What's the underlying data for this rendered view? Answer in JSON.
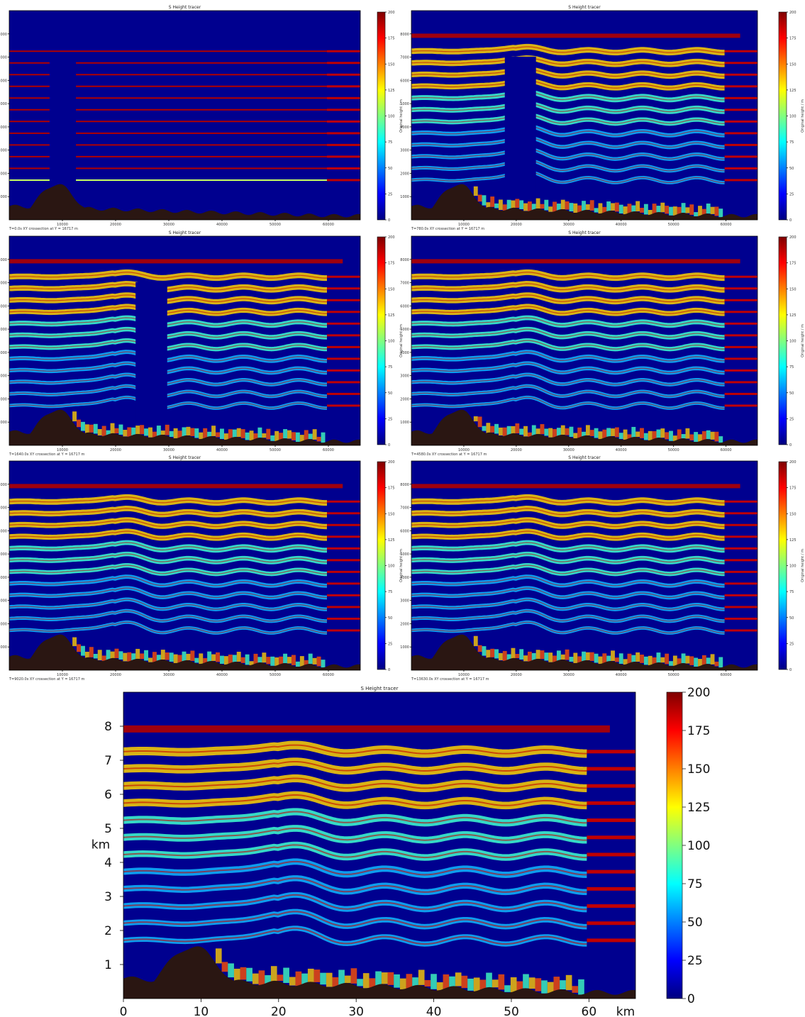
{
  "colors": {
    "background": "#00008f",
    "terrain": "#2a1612",
    "colormap": [
      "#00007f",
      "#0000ff",
      "#0080ff",
      "#00ffff",
      "#80ff80",
      "#ffff00",
      "#ff8000",
      "#ff0000",
      "#7f0000"
    ]
  },
  "chart_data": [
    {
      "type": "heatmap",
      "title": "S Height tracer",
      "caption": "T=0.0s XY crossection at Y = 16717 m",
      "colorbar_label": "Original height / m",
      "colorbar_ticks": [
        "0",
        "25",
        "50",
        "75",
        "100",
        "125",
        "150",
        "175",
        "200"
      ],
      "ylim": [
        0,
        9000
      ],
      "xlim": [
        0,
        66000
      ],
      "x_ticks": [
        "10000",
        "20000",
        "30000",
        "40000",
        "50000",
        "60000"
      ],
      "y_ticks": [
        "1000",
        "2000",
        "3000",
        "4000",
        "5000",
        "6000",
        "7000",
        "8000"
      ],
      "phase": 0
    },
    {
      "type": "heatmap",
      "title": "S Height tracer",
      "caption": "T=780.0s XY crossection at Y = 16717 m",
      "colorbar_label": "Original height / m",
      "colorbar_ticks": [
        "0",
        "25",
        "50",
        "75",
        "100",
        "125",
        "150",
        "175",
        "200"
      ],
      "ylim": [
        0,
        9000
      ],
      "xlim": [
        0,
        66000
      ],
      "x_ticks": [
        "10000",
        "20000",
        "30000",
        "40000",
        "50000",
        "60000"
      ],
      "y_ticks": [
        "1000",
        "2000",
        "3000",
        "4000",
        "5000",
        "6000",
        "7000",
        "8000"
      ],
      "phase": 1
    },
    {
      "type": "heatmap",
      "title": "S Height tracer",
      "caption": "T=1640.0s XY crossection at Y = 16717 m",
      "colorbar_label": "Original height / m",
      "colorbar_ticks": [
        "0",
        "25",
        "50",
        "75",
        "100",
        "125",
        "150",
        "175",
        "200"
      ],
      "ylim": [
        0,
        9000
      ],
      "xlim": [
        0,
        66000
      ],
      "x_ticks": [
        "10000",
        "20000",
        "30000",
        "40000",
        "50000",
        "60000"
      ],
      "y_ticks": [
        "1000",
        "2000",
        "3000",
        "4000",
        "5000",
        "6000",
        "7000",
        "8000"
      ],
      "phase": 2
    },
    {
      "type": "heatmap",
      "title": "S Height tracer",
      "caption": "T=4580.0s XY crossection at Y = 16717 m",
      "colorbar_label": "Original height / m",
      "colorbar_ticks": [
        "0",
        "25",
        "50",
        "75",
        "100",
        "125",
        "150",
        "175",
        "200"
      ],
      "ylim": [
        0,
        9000
      ],
      "xlim": [
        0,
        66000
      ],
      "x_ticks": [
        "10000",
        "20000",
        "30000",
        "40000",
        "50000",
        "60000"
      ],
      "y_ticks": [
        "1000",
        "2000",
        "3000",
        "4000",
        "5000",
        "6000",
        "7000",
        "8000"
      ],
      "phase": 3
    },
    {
      "type": "heatmap",
      "title": "S Height tracer",
      "caption": "T=9020.0s XY crossection at Y = 16717 m",
      "colorbar_label": "Original height / m",
      "colorbar_ticks": [
        "0",
        "25",
        "50",
        "75",
        "100",
        "125",
        "150",
        "175",
        "200"
      ],
      "ylim": [
        0,
        9000
      ],
      "xlim": [
        0,
        66000
      ],
      "x_ticks": [
        "10000",
        "20000",
        "30000",
        "40000",
        "50000",
        "60000"
      ],
      "y_ticks": [
        "1000",
        "2000",
        "3000",
        "4000",
        "5000",
        "6000",
        "7000",
        "8000"
      ],
      "phase": 4
    },
    {
      "type": "heatmap",
      "title": "S Height tracer",
      "caption": "T=13630.0s XY crossection at Y = 16717 m",
      "colorbar_label": "Original height / m",
      "colorbar_ticks": [
        "0",
        "25",
        "50",
        "75",
        "100",
        "125",
        "150",
        "175",
        "200"
      ],
      "ylim": [
        0,
        9000
      ],
      "xlim": [
        0,
        66000
      ],
      "x_ticks": [
        "10000",
        "20000",
        "30000",
        "40000",
        "50000",
        "60000"
      ],
      "y_ticks": [
        "1000",
        "2000",
        "3000",
        "4000",
        "5000",
        "6000",
        "7000",
        "8000"
      ],
      "phase": 5
    },
    {
      "type": "heatmap",
      "title": "S Height tracer",
      "caption": "",
      "colorbar_label": "",
      "colorbar_ticks": [
        "0",
        "25",
        "50",
        "75",
        "100",
        "125",
        "150",
        "175",
        "200"
      ],
      "ylim": [
        0,
        9
      ],
      "xlim": [
        0,
        66
      ],
      "xlabel": "km",
      "ylabel": "km",
      "x_ticks": [
        "0",
        "10",
        "20",
        "30",
        "40",
        "50",
        "60"
      ],
      "y_ticks": [
        "1",
        "2",
        "3",
        "4",
        "5",
        "6",
        "7",
        "8"
      ],
      "phase": 5
    }
  ]
}
